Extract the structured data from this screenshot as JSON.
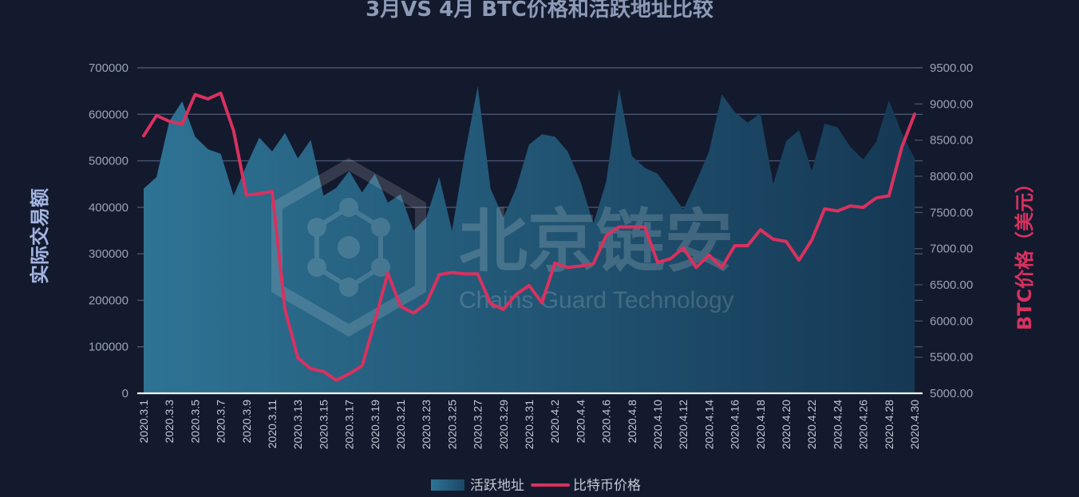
{
  "chart_data": {
    "type": "area",
    "title": "3月VS 4月  BTC价格和活跃地址比较",
    "ylabel_left": "实际交易额",
    "ylabel_right": "BTC价格（美元）",
    "ylim_left": [
      0,
      700000
    ],
    "ylim_right": [
      5000,
      9500
    ],
    "yticks_left": [
      "0",
      "100000",
      "200000",
      "300000",
      "400000",
      "500000",
      "600000",
      "700000"
    ],
    "yticks_right": [
      "5000.00",
      "5500.00",
      "6000.00",
      "6500.00",
      "7000.00",
      "7500.00",
      "8000.00",
      "8500.00",
      "9000.00",
      "9500.00"
    ],
    "grid": true,
    "legend_position": "bottom-center",
    "categories": [
      "2020.3.1",
      "2020.3.2",
      "2020.3.3",
      "2020.3.4",
      "2020.3.5",
      "2020.3.6",
      "2020.3.7",
      "2020.3.8",
      "2020.3.9",
      "2020.3.10",
      "2020.3.11",
      "2020.3.12",
      "2020.3.13",
      "2020.3.14",
      "2020.3.15",
      "2020.3.16",
      "2020.3.17",
      "2020.3.18",
      "2020.3.19",
      "2020.3.20",
      "2020.3.21",
      "2020.3.22",
      "2020.3.23",
      "2020.3.24",
      "2020.3.25",
      "2020.3.26",
      "2020.3.27",
      "2020.3.28",
      "2020.3.29",
      "2020.3.30",
      "2020.3.31",
      "2020.4.1",
      "2020.4.2",
      "2020.4.3",
      "2020.4.4",
      "2020.4.5",
      "2020.4.6",
      "2020.4.7",
      "2020.4.8",
      "2020.4.9",
      "2020.4.10",
      "2020.4.11",
      "2020.4.12",
      "2020.4.13",
      "2020.4.14",
      "2020.4.15",
      "2020.4.16",
      "2020.4.17",
      "2020.4.18",
      "2020.4.19",
      "2020.4.20",
      "2020.4.21",
      "2020.4.22",
      "2020.4.23",
      "2020.4.24",
      "2020.4.25",
      "2020.4.26",
      "2020.4.27",
      "2020.4.28",
      "2020.4.29",
      "2020.4.30"
    ],
    "x_tick_labels": [
      "2020.3.1",
      "2020.3.3",
      "2020.3.5",
      "2020.3.7",
      "2020.3.9",
      "2020.3.11",
      "2020.3.13",
      "2020.3.15",
      "2020.3.17",
      "2020.3.19",
      "2020.3.21",
      "2020.3.23",
      "2020.3.25",
      "2020.3.27",
      "2020.3.29",
      "2020.3.31",
      "2020.4.2",
      "2020.4.4",
      "2020.4.6",
      "2020.4.8",
      "2020.4.10",
      "2020.4.12",
      "2020.4.14",
      "2020.4.16",
      "2020.4.18",
      "2020.4.20",
      "2020.4.22",
      "2020.4.24",
      "2020.4.26",
      "2020.4.28",
      "2020.4.30"
    ],
    "series": [
      {
        "name": "活跃地址",
        "type": "area",
        "axis": "left",
        "color": "#2a6a8c",
        "values": [
          440000,
          465000,
          585000,
          628000,
          552000,
          525000,
          515000,
          425000,
          490000,
          550000,
          520000,
          560000,
          505000,
          545000,
          425000,
          442000,
          478000,
          432000,
          472000,
          410000,
          428000,
          350000,
          378000,
          465000,
          350000,
          515000,
          660000,
          440000,
          378000,
          442000,
          535000,
          557000,
          552000,
          520000,
          455000,
          365000,
          455000,
          655000,
          510000,
          485000,
          472000,
          435000,
          395000,
          455000,
          520000,
          643000,
          605000,
          582000,
          602000,
          450000,
          542000,
          566000,
          478000,
          580000,
          572000,
          530000,
          503000,
          540000,
          630000,
          560000,
          505000
        ]
      },
      {
        "name": "比特币价格",
        "type": "line",
        "axis": "right",
        "color": "#d9315f",
        "values": [
          8560,
          8840,
          8760,
          8720,
          9130,
          9070,
          9150,
          8630,
          7740,
          7760,
          7790,
          6160,
          5490,
          5340,
          5300,
          5180,
          5270,
          5380,
          6000,
          6660,
          6200,
          6110,
          6240,
          6640,
          6670,
          6650,
          6650,
          6240,
          6160,
          6370,
          6490,
          6250,
          6800,
          6740,
          6760,
          6790,
          7180,
          7300,
          7300,
          7300,
          6810,
          6860,
          7010,
          6740,
          6910,
          6740,
          7040,
          7040,
          7260,
          7130,
          7100,
          6840,
          7120,
          7550,
          7520,
          7590,
          7570,
          7700,
          7730,
          8400,
          8860
        ]
      }
    ]
  },
  "legend": {
    "area_label": "活跃地址",
    "line_label": "比特币价格"
  },
  "watermark": {
    "cn": "北京链安",
    "en": "Chains Guard Technology"
  }
}
